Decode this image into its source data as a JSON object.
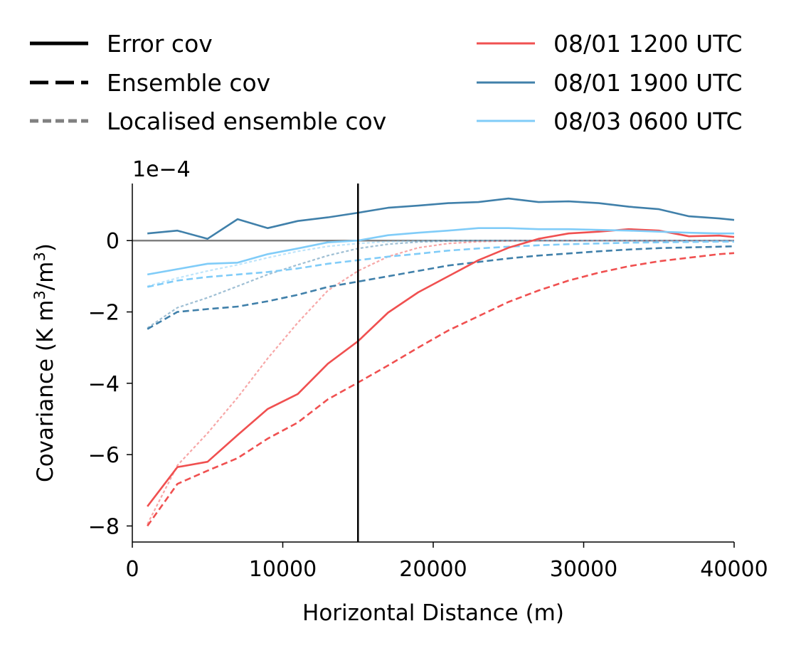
{
  "chart_data": {
    "type": "line",
    "xlabel": "Horizontal Distance (m)",
    "ylabel_prefix": "Covariance (K m",
    "ylabel_mid": "/m",
    "ylabel_suffix": ")",
    "ylabel_sup": "3",
    "y_scale_label": "1e−4",
    "xlim": [
      0,
      40000
    ],
    "ylim": [
      -8.45,
      1.6
    ],
    "xticks": [
      0,
      10000,
      20000,
      30000,
      40000
    ],
    "xtick_labels": [
      "0",
      "10000",
      "20000",
      "30000",
      "40000"
    ],
    "yticks": [
      -8,
      -6,
      -4,
      -2,
      0
    ],
    "ytick_labels": [
      "−8",
      "−6",
      "−4",
      "−2",
      "0"
    ],
    "grid": false,
    "legend_position": "top",
    "style_legend": [
      {
        "label": "Error cov",
        "style": "solid",
        "color": "#000000"
      },
      {
        "label": "Ensemble cov",
        "style": "dashed",
        "color": "#000000"
      },
      {
        "label": "Localised ensemble cov",
        "style": "dotted",
        "color": "#808080"
      }
    ],
    "color_legend": [
      {
        "label": "08/01 1200 UTC",
        "color": "#f05050"
      },
      {
        "label": "08/01 1900 UTC",
        "color": "#4080aa"
      },
      {
        "label": "08/03 0600 UTC",
        "color": "#80ccf8"
      }
    ],
    "vline_x": 15000,
    "hline_y": 0,
    "x": [
      1000,
      3000,
      5000,
      7000,
      9000,
      11000,
      13000,
      15000,
      17000,
      19000,
      21000,
      23000,
      25000,
      27000,
      29000,
      31000,
      33000,
      35000,
      37000,
      39000,
      40000
    ],
    "series": [
      {
        "name": "08/01 1200 UTC",
        "kind": "error",
        "color": "#f05050",
        "values": [
          -7.45,
          -6.35,
          -6.2,
          -5.45,
          -4.72,
          -4.3,
          -3.45,
          -2.82,
          -2.02,
          -1.45,
          -1.0,
          -0.55,
          -0.2,
          0.05,
          0.2,
          0.25,
          0.32,
          0.28,
          0.12,
          0.14,
          0.1
        ]
      },
      {
        "name": "08/01 1200 UTC",
        "kind": "ensemble",
        "color": "#f05050",
        "values": [
          -8.0,
          -6.82,
          -6.45,
          -6.1,
          -5.55,
          -5.1,
          -4.45,
          -3.98,
          -3.5,
          -3.0,
          -2.52,
          -2.12,
          -1.72,
          -1.4,
          -1.12,
          -0.9,
          -0.72,
          -0.58,
          -0.48,
          -0.38,
          -0.35
        ]
      },
      {
        "name": "08/01 1200 UTC",
        "kind": "localised",
        "color": "#f05050",
        "values": [
          -7.95,
          -6.3,
          -5.4,
          -4.4,
          -3.3,
          -2.3,
          -1.4,
          -0.85,
          -0.45,
          -0.2,
          -0.08,
          -0.03,
          -0.01,
          0.0,
          0.0,
          0.0,
          0.0,
          0.0,
          0.0,
          0.0,
          0.0
        ]
      },
      {
        "name": "08/01 1900 UTC",
        "kind": "error",
        "color": "#4080aa",
        "values": [
          0.2,
          0.28,
          0.05,
          0.6,
          0.35,
          0.55,
          0.65,
          0.78,
          0.92,
          0.98,
          1.05,
          1.08,
          1.18,
          1.08,
          1.1,
          1.05,
          0.95,
          0.88,
          0.68,
          0.62,
          0.58
        ]
      },
      {
        "name": "08/01 1900 UTC",
        "kind": "ensemble",
        "color": "#4080aa",
        "values": [
          -2.48,
          -2.0,
          -1.92,
          -1.85,
          -1.7,
          -1.52,
          -1.3,
          -1.15,
          -1.0,
          -0.85,
          -0.7,
          -0.6,
          -0.5,
          -0.42,
          -0.36,
          -0.3,
          -0.25,
          -0.21,
          -0.19,
          -0.17,
          -0.16
        ]
      },
      {
        "name": "08/01 1900 UTC",
        "kind": "localised",
        "color": "#4080aa",
        "values": [
          -2.45,
          -1.88,
          -1.6,
          -1.28,
          -0.95,
          -0.68,
          -0.42,
          -0.22,
          -0.1,
          -0.04,
          -0.01,
          0.0,
          0.0,
          0.0,
          0.0,
          0.0,
          0.0,
          0.0,
          0.0,
          0.0,
          0.0
        ]
      },
      {
        "name": "08/03 0600 UTC",
        "kind": "error",
        "color": "#80ccf8",
        "values": [
          -0.95,
          -0.8,
          -0.65,
          -0.62,
          -0.38,
          -0.22,
          -0.05,
          0.0,
          0.15,
          0.22,
          0.28,
          0.35,
          0.35,
          0.32,
          0.32,
          0.3,
          0.28,
          0.25,
          0.22,
          0.2,
          0.2
        ]
      },
      {
        "name": "08/03 0600 UTC",
        "kind": "ensemble",
        "color": "#80ccf8",
        "values": [
          -1.3,
          -1.12,
          -1.02,
          -0.95,
          -0.88,
          -0.78,
          -0.65,
          -0.55,
          -0.45,
          -0.37,
          -0.28,
          -0.22,
          -0.17,
          -0.13,
          -0.1,
          -0.08,
          -0.06,
          -0.05,
          -0.04,
          -0.03,
          -0.03
        ]
      },
      {
        "name": "08/03 0600 UTC",
        "kind": "localised",
        "color": "#80ccf8",
        "values": [
          -1.28,
          -1.05,
          -0.85,
          -0.68,
          -0.48,
          -0.3,
          -0.16,
          -0.08,
          -0.03,
          -0.01,
          0.0,
          0.0,
          0.0,
          0.0,
          0.0,
          0.0,
          0.0,
          0.0,
          0.0,
          0.0,
          0.0
        ]
      }
    ]
  }
}
